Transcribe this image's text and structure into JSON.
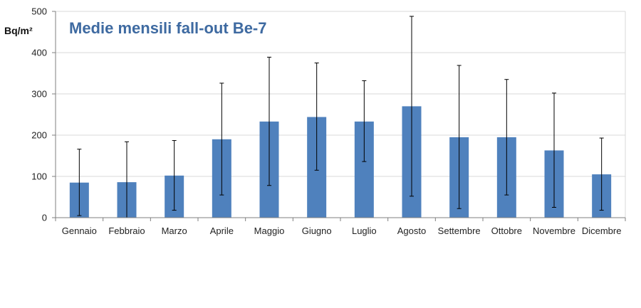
{
  "chart_data": {
    "type": "bar",
    "title": "Medie mensili fall-out Be-7",
    "ylabel": "Bq/m²",
    "xlabel": "",
    "ylim": [
      0,
      500
    ],
    "yticks": [
      0,
      100,
      200,
      300,
      400,
      500
    ],
    "grid": true,
    "legend": "none",
    "categories": [
      "Gennaio",
      "Febbraio",
      "Marzo",
      "Aprile",
      "Maggio",
      "Giugno",
      "Luglio",
      "Agosto",
      "Settembre",
      "Ottobre",
      "Novembre",
      "Dicembre"
    ],
    "values": [
      85,
      86,
      102,
      190,
      233,
      244,
      233,
      270,
      195,
      195,
      163,
      105
    ],
    "error_low": [
      5,
      0,
      18,
      55,
      78,
      115,
      136,
      52,
      22,
      55,
      25,
      18
    ],
    "error_high": [
      166,
      184,
      187,
      326,
      389,
      375,
      332,
      488,
      369,
      335,
      302,
      193
    ],
    "bar_color": "#4f81bd",
    "grid_color": "#d9d9d9",
    "axis_color": "#7f7f7f",
    "title_color": "#3e6aa1"
  }
}
